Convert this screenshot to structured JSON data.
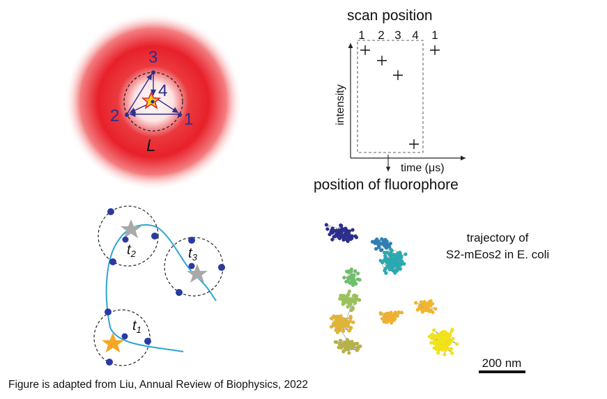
{
  "panel_a": {
    "position_labels": [
      "3",
      "4",
      "2",
      "1"
    ],
    "length_label": "L"
  },
  "panel_b": {
    "title": "scan position",
    "scan_positions": [
      "1",
      "2",
      "3",
      "4",
      "1"
    ],
    "y_axis_label": "intensity",
    "x_axis_label": "time (μs)",
    "bottom_label": "position of fluorophore"
  },
  "panel_c": {
    "time_labels": [
      {
        "base": "t",
        "sub": "2"
      },
      {
        "base": "t",
        "sub": "3"
      },
      {
        "base": "t",
        "sub": "1"
      }
    ]
  },
  "panel_d": {
    "description_line1": "trajectory of",
    "description_line2": "S2-mEos2 in E. coli",
    "scale_bar_label": "200 nm"
  },
  "colors": {
    "excitation_red": "#e8202a",
    "scan_blue": "#2b2f8f",
    "trajectory_line": "#2aa6d6",
    "dot_blue": "#2b3aa0",
    "star_gray": "#a9a9a9",
    "star_orange": "#f5a623"
  },
  "caption": "Figure is adapted from Liu, Annual Review of Biophysics, 2022"
}
